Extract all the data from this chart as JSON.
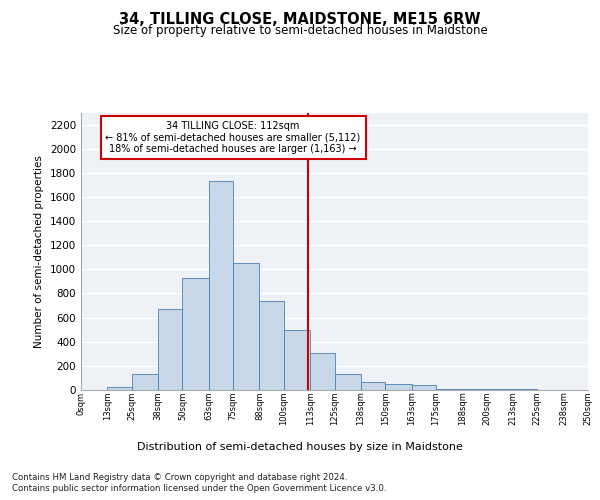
{
  "title": "34, TILLING CLOSE, MAIDSTONE, ME15 6RW",
  "subtitle": "Size of property relative to semi-detached houses in Maidstone",
  "xlabel": "Distribution of semi-detached houses by size in Maidstone",
  "ylabel": "Number of semi-detached properties",
  "footer_line1": "Contains HM Land Registry data © Crown copyright and database right 2024.",
  "footer_line2": "Contains public sector information licensed under the Open Government Licence v3.0.",
  "annotation_title": "34 TILLING CLOSE: 112sqm",
  "annotation_line1": "← 81% of semi-detached houses are smaller (5,112)",
  "annotation_line2": "18% of semi-detached houses are larger (1,163) →",
  "property_size": 112,
  "bar_color": "#c8d8e8",
  "bar_edge_color": "#4a7fb5",
  "vline_color": "#cc0000",
  "annotation_box_color": "#cc0000",
  "background_color": "#eef2f7",
  "bins": [
    0,
    13,
    25,
    38,
    50,
    63,
    75,
    88,
    100,
    113,
    125,
    138,
    150,
    163,
    175,
    188,
    200,
    213,
    225,
    238,
    250
  ],
  "bin_labels": [
    "0sqm",
    "13sqm",
    "25sqm",
    "38sqm",
    "50sqm",
    "63sqm",
    "75sqm",
    "88sqm",
    "100sqm",
    "113sqm",
    "125sqm",
    "138sqm",
    "150sqm",
    "163sqm",
    "175sqm",
    "188sqm",
    "200sqm",
    "213sqm",
    "225sqm",
    "238sqm",
    "250sqm"
  ],
  "values": [
    0,
    25,
    130,
    670,
    930,
    1730,
    1055,
    735,
    500,
    310,
    130,
    70,
    50,
    40,
    5,
    5,
    5,
    5,
    0,
    0
  ],
  "ylim": [
    0,
    2300
  ],
  "yticks": [
    0,
    200,
    400,
    600,
    800,
    1000,
    1200,
    1400,
    1600,
    1800,
    2000,
    2200
  ]
}
